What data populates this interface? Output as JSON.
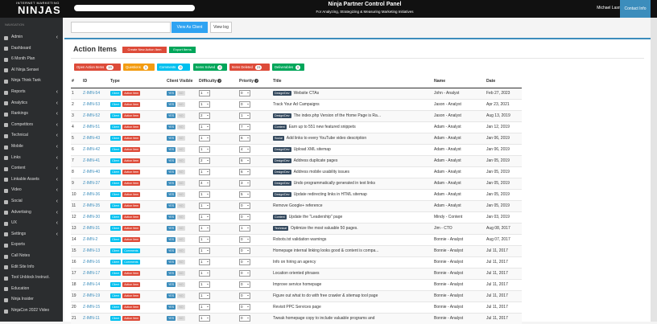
{
  "header": {
    "logo_small": "INTERNET MARKETING",
    "logo": "NINJAS",
    "title": "Ninja Partner Control Panel",
    "subtitle": "For Analyzing, Strategizing & Measuring Marketing Initiatives",
    "user": "Michael Lasrisbyen",
    "contact": "Contact Info"
  },
  "sidebar": {
    "heading": "NAVIGATION",
    "items": [
      {
        "label": "Admin",
        "submenu": true
      },
      {
        "label": "Dashboard"
      },
      {
        "label": "6 Month Plan"
      },
      {
        "label": "AI Ninja Sensei"
      },
      {
        "label": "Ninja Think Tank"
      },
      {
        "label": "Reports",
        "submenu": true
      },
      {
        "label": "Analytics",
        "submenu": true
      },
      {
        "label": "Rankings",
        "submenu": true
      },
      {
        "label": "Competitors",
        "submenu": true
      },
      {
        "label": "Technical",
        "submenu": true
      },
      {
        "label": "Mobile",
        "submenu": true
      },
      {
        "label": "Links",
        "submenu": true
      },
      {
        "label": "Content",
        "submenu": true
      },
      {
        "label": "Linkable Assets",
        "submenu": true
      },
      {
        "label": "Video",
        "submenu": true
      },
      {
        "label": "Social",
        "submenu": true
      },
      {
        "label": "Advertising",
        "submenu": true
      },
      {
        "label": "UX",
        "submenu": true
      },
      {
        "label": "Settings",
        "submenu": true
      },
      {
        "label": "Exports"
      },
      {
        "label": "Call Notes"
      },
      {
        "label": "Edit Site Info"
      },
      {
        "label": "Tool Unblock Instruct."
      },
      {
        "label": "Education"
      },
      {
        "label": "Ninja Insider"
      },
      {
        "label": "NinjaCon 2022 Video"
      }
    ]
  },
  "toolbar": {
    "view_as_client": "View As Client",
    "view_log": "View log"
  },
  "panel": {
    "title": "Action Items",
    "buttons": [
      "Create New Action Item",
      "Export Items"
    ],
    "filters": [
      {
        "label": "Open Action Items",
        "count": 19,
        "color": "#dd4b39"
      },
      {
        "label": "Questions",
        "count": 1,
        "color": "#f39c12"
      },
      {
        "label": "Comments",
        "count": 0,
        "color": "#00c0ef"
      },
      {
        "label": "Items Solved",
        "count": 0,
        "color": "#00a65a"
      },
      {
        "label": "Items Deleted",
        "count": 23,
        "color": "#dd4b39"
      },
      {
        "label": "Deliverables",
        "count": 0,
        "color": "#00a65a"
      }
    ],
    "columns": [
      "#",
      "ID",
      "Type",
      "Client Visible",
      "Difficulty",
      "Priority",
      "Title",
      "Name",
      "Date"
    ],
    "rows": [
      {
        "num": 1,
        "id": "Z-IMN-54",
        "type": "Client",
        "kind": "Action Item",
        "yes": "YES",
        "no": "NO",
        "difficulty": 1,
        "priority": 0,
        "tag": "Design/Dev",
        "title": "Website CTAs",
        "name": "John - Analyst",
        "date": "Feb 27, 2023"
      },
      {
        "num": 2,
        "id": "Z-IMN-53",
        "type": "Client",
        "kind": "Action Item",
        "yes": "YES",
        "no": "NO",
        "difficulty": 1,
        "priority": 0,
        "title": "Track Your Ad Campaigns",
        "name": "Jason - Analyst",
        "date": "Apr 23, 2021"
      },
      {
        "num": 3,
        "id": "Z-IMN-52",
        "type": "Client",
        "kind": "Action Item",
        "yes": "YES",
        "no": "NO",
        "difficulty": 2,
        "priority": 1,
        "tag": "Design/Dev",
        "title": "The index.php Version of the Home Page is Ra...",
        "name": "Jason - Analyst",
        "date": "Aug 13, 2019"
      },
      {
        "num": 4,
        "id": "Z-IMN-51",
        "type": "Client",
        "kind": "Action Item",
        "yes": "YES",
        "no": "NO",
        "difficulty": 1,
        "priority": 7,
        "tag": "Content",
        "title": "Earn up to 551 new featured snippets",
        "name": "Adam - Analyst",
        "date": "Jan 12, 2019"
      },
      {
        "num": 5,
        "id": "Z-IMN-43",
        "type": "Client",
        "kind": "Action Item",
        "yes": "YES",
        "no": "NO",
        "difficulty": 1,
        "priority": 6,
        "tag": "Social",
        "title": "Add links to every YouTube video description",
        "name": "Adam - Analyst",
        "date": "Jan 06, 2019"
      },
      {
        "num": 6,
        "id": "Z-IMN-42",
        "type": "Client",
        "kind": "Action Item",
        "yes": "YES",
        "no": "NO",
        "difficulty": 1,
        "priority": 4,
        "tag": "Design/Dev",
        "title": "Upload XML sitemap",
        "name": "Adam - Analyst",
        "date": "Jan 06, 2019"
      },
      {
        "num": 7,
        "id": "Z-IMN-41",
        "type": "Client",
        "kind": "Action Item",
        "yes": "YES",
        "no": "NO",
        "difficulty": 2,
        "priority": 6,
        "tag": "Design/Dev",
        "title": "Address duplicate pages",
        "name": "Adam - Analyst",
        "date": "Jan 05, 2019"
      },
      {
        "num": 8,
        "id": "Z-IMN-40",
        "type": "Client",
        "kind": "Action Item",
        "yes": "YES",
        "no": "NO",
        "difficulty": 1,
        "priority": 6,
        "tag": "Design/Dev",
        "title": "Address mobile usability issues",
        "name": "Adam - Analyst",
        "date": "Jan 05, 2019"
      },
      {
        "num": 9,
        "id": "Z-IMN-37",
        "type": "Client",
        "kind": "Action Item",
        "yes": "YES",
        "no": "NO",
        "difficulty": 4,
        "priority": 3,
        "tag": "Design/Dev",
        "title": "Undo programmatically generated in text links",
        "name": "Adam - Analyst",
        "date": "Jan 05, 2019"
      },
      {
        "num": 10,
        "id": "Z-IMN-36",
        "type": "Client",
        "kind": "Action Item",
        "yes": "YES",
        "no": "NO",
        "difficulty": 1,
        "priority": 5,
        "tag": "Design/Dev",
        "title": "Update redirecting links in HTML sitemap",
        "name": "Adam - Analyst",
        "date": "Jan 05, 2019"
      },
      {
        "num": 11,
        "id": "Z-IMN-35",
        "type": "Client",
        "kind": "Action Item",
        "yes": "YES",
        "no": "NO",
        "difficulty": 1,
        "priority": 0,
        "title": "Remove Google+ reference",
        "name": "Adam - Analyst",
        "date": "Jan 05, 2019"
      },
      {
        "num": 12,
        "id": "Z-IMN-30",
        "type": "Client",
        "kind": "Action Item",
        "yes": "YES",
        "no": "NO",
        "difficulty": 1,
        "priority": 0,
        "tag": "Content",
        "title": "Update the \"Leadership\" page",
        "name": "Mindy - Content",
        "date": "Jan 03, 2019"
      },
      {
        "num": 13,
        "id": "Z-IMN-31",
        "type": "Client",
        "kind": "Action Item",
        "yes": "YES",
        "no": "NO",
        "difficulty": 1,
        "priority": 1,
        "tag": "Technical",
        "title": "Optimize the most valuable 50 pages.",
        "name": "Jim - CTO",
        "date": "Aug 08, 2017"
      },
      {
        "num": 14,
        "id": "Z-IMN-2",
        "type": "Client",
        "kind": "Action Item",
        "yes": "YES",
        "no": "NO",
        "difficulty": 1,
        "priority": 0,
        "title": "Robots.txt validation warnings",
        "name": "Bonnie - Analyst",
        "date": "Aug 07, 2017"
      },
      {
        "num": 15,
        "id": "Z-IMN-13",
        "type": "Client",
        "kind": "Comments",
        "yes": "YES",
        "no": "NO",
        "difficulty": 1,
        "priority": 0,
        "title": "Homepage internal linking looks good & content is compa...",
        "name": "Bonnie - Analyst",
        "date": "Jul 11, 2017"
      },
      {
        "num": 16,
        "id": "Z-IMN-16",
        "type": "Client",
        "kind": "Comments",
        "yes": "YES",
        "no": "NO",
        "difficulty": 1,
        "priority": 0,
        "title": "Info on hiring an agency",
        "name": "Bonnie - Analyst",
        "date": "Jul 11, 2017"
      },
      {
        "num": 17,
        "id": "Z-IMN-17",
        "type": "Client",
        "kind": "Action Item",
        "yes": "YES",
        "no": "NO",
        "difficulty": 1,
        "priority": 0,
        "title": "Location oriented phrases",
        "name": "Bonnie - Analyst",
        "date": "Jul 11, 2017"
      },
      {
        "num": 18,
        "id": "Z-IMN-14",
        "type": "Client",
        "kind": "Action Item",
        "yes": "YES",
        "no": "NO",
        "difficulty": 1,
        "priority": 0,
        "title": "Improve service homepage",
        "name": "Bonnie - Analyst",
        "date": "Jul 11, 2017"
      },
      {
        "num": 19,
        "id": "Z-IMN-19",
        "type": "Client",
        "kind": "Action Item",
        "yes": "YES",
        "no": "NO",
        "difficulty": 1,
        "priority": 0,
        "title": "Figure out what to do with free crawler & sitemap tool page",
        "name": "Bonnie - Analyst",
        "date": "Jul 11, 2017"
      },
      {
        "num": 20,
        "id": "Z-IMN-15",
        "type": "Client",
        "kind": "Action Item",
        "yes": "YES",
        "no": "NO",
        "difficulty": 1,
        "priority": 0,
        "title": "Revisit PPC Services page",
        "name": "Bonnie - Analyst",
        "date": "Jul 11, 2017"
      },
      {
        "num": 21,
        "id": "Z-IMN-11",
        "type": "Client",
        "kind": "Action Item",
        "yes": "YES",
        "no": "NO",
        "difficulty": 1,
        "priority": 0,
        "title": "Tweak homepage copy to include valuable programs and",
        "name": "Bonnie - Analyst",
        "date": "Jul 11, 2017"
      }
    ]
  }
}
